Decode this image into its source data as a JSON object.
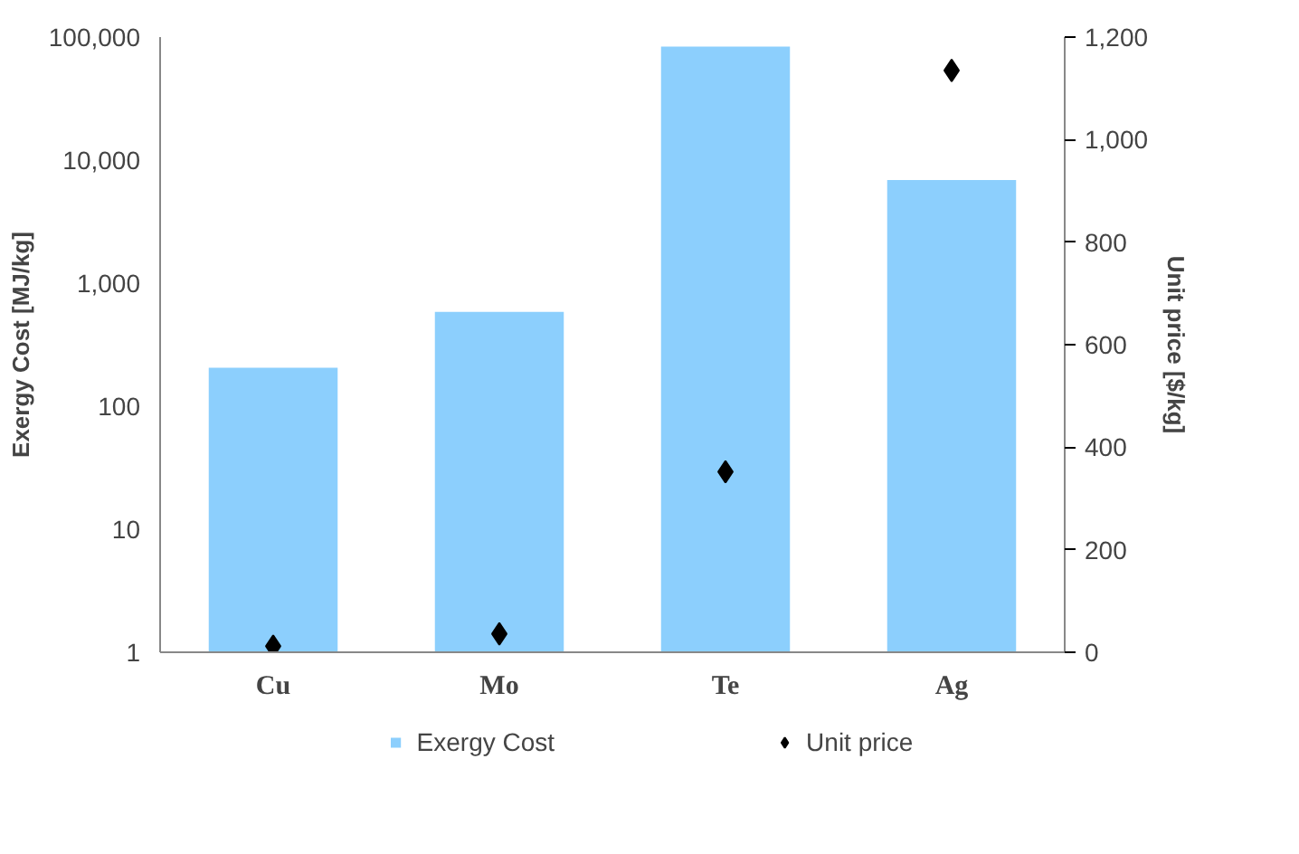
{
  "chart_data": {
    "type": "bar",
    "categories": [
      "Cu",
      "Mo",
      "Te",
      "Ag"
    ],
    "ylabel": "Exergy Cost [MJ/kg]",
    "y2label": "Unit price [$/kg]",
    "series": [
      {
        "name": "Exergy Cost",
        "color": "#8ccffd",
        "values": [
          205,
          585,
          83600,
          6890
        ]
      },
      {
        "name": "Unit price",
        "type": "scatter",
        "axis": "y2",
        "color": "#000000",
        "marker": "diamond",
        "values": [
          12,
          36,
          352,
          1135
        ]
      }
    ],
    "log": "y",
    "ylim": [
      1,
      100000
    ],
    "yticks": [
      1,
      10,
      100,
      {
        "value": 1000,
        "label": "1,000"
      },
      {
        "value": 10000,
        "label": "10,000"
      },
      {
        "value": 100000,
        "label": "100,000"
      }
    ],
    "y2lim": [
      0,
      1200
    ],
    "y2ticks": [
      0,
      200,
      400,
      600,
      800,
      {
        "value": 1000,
        "label": "1,000"
      },
      {
        "value": 1200,
        "label": "1,200"
      }
    ],
    "grid": false,
    "legend": "bottom"
  }
}
